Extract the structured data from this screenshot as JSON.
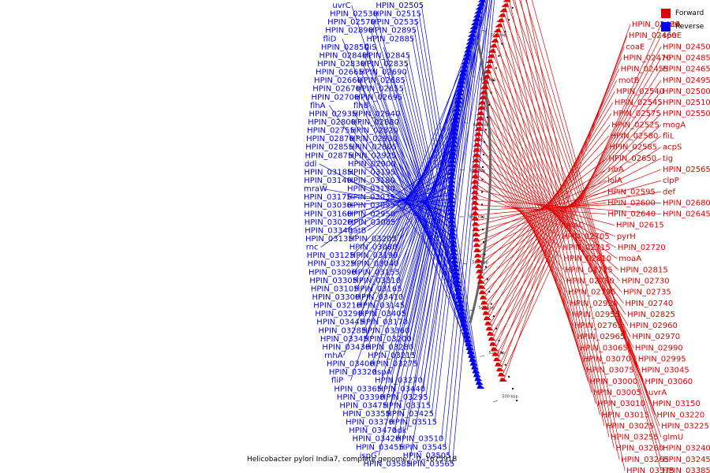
{
  "caption": "Helicobacter pylori India7, complete genome. - 0..1675918",
  "colors": {
    "forward": "#e00000",
    "reverse": "#0000ee",
    "backbone": "#666666"
  },
  "legend": [
    {
      "label": "Forward",
      "color": "#e00000"
    },
    {
      "label": "Reverse",
      "color": "#0000ee"
    }
  ],
  "ticks": [
    "500 kbp",
    "520 kbp",
    "540 kbp",
    "560 kbp",
    "580 kbp",
    "600 kbp",
    "620 kbp",
    "640 kbp",
    "660 kbp",
    "680 kbp",
    "700 kbp"
  ],
  "reverse_labels": [
    "HPIN_02505",
    "uvrC",
    "HPIN_02515",
    "HPIN_02530",
    "HPIN_02535",
    "HPIN_02570",
    "HPIN_02895",
    "HPIN_02890",
    "HPIN_02885",
    "fliD",
    "fliS",
    "HPIN_02850",
    "HPIN_02845",
    "HPIN_02840",
    "HPIN_02835",
    "HPIN_02830",
    "HPIN_02690",
    "HPIN_02665",
    "HPIN_02685",
    "HPIN_02660",
    "HPIN_02655",
    "HPIN_02670",
    "HPIN_02695",
    "HPIN_02700",
    "flhB",
    "flhA",
    "HPIN_02940",
    "HPIN_02935",
    "HPIN_02880",
    "HPIN_02800",
    "HPIN_02820",
    "HPIN_02755",
    "HPIN_02930",
    "HPIN_02870",
    "HPIN_02805",
    "HPIN_02855",
    "HPIN_02925",
    "HPIN_02875",
    "HPIN_02900",
    "ddl",
    "HPIN_03195",
    "HPIN_03185",
    "HPIN_03180",
    "HPIN_03140",
    "HPIN_03130",
    "mraW",
    "HPIN_03035",
    "HPIN_03175",
    "HPIN_03095",
    "HPIN_03030",
    "HPIN_02950",
    "HPIN_03160",
    "HPIN_03085",
    "HPIN_03020",
    "gatB",
    "HPIN_03340",
    "HPIN_03205",
    "HPIN_03135",
    "HPIN_03080",
    "rnc",
    "HPIN_03190",
    "HPIN_03125",
    "HPIN_03040",
    "HPIN_03325",
    "HPIN_03155",
    "HPIN_03090",
    "HPIN_03310",
    "HPIN_03305",
    "HPIN_03165",
    "HPIN_03105",
    "HPIN_03410",
    "HPIN_03300",
    "HPIN_03145",
    "HPIN_03210",
    "HPIN_03405",
    "HPIN_03290",
    "HPIN_03170",
    "HPIN_03445",
    "HPIN_03360",
    "HPIN_03285",
    "HPIN_03200",
    "HPIN_03345",
    "HPIN_03280",
    "HPIN_03430",
    "HPIN_03215",
    "rnhA",
    "HPIN_03275",
    "HPIN_03400",
    "aspA",
    "HPIN_03320",
    "HPIN_03270",
    "fliP",
    "HPIN_03440",
    "HPIN_03365",
    "HPIN_03295",
    "HPIN_03390",
    "HPIN_03315",
    "HPIN_03475",
    "HPIN_03425",
    "HPIN_03355",
    "HPIN_03515",
    "HPIN_03370",
    "adk",
    "HPIN_03470",
    "HPIN_03510",
    "HPIN_03420",
    "HPIN_03545",
    "HPIN_03455",
    "HPIN_03505",
    "ispG",
    "HPIN_03565",
    "HPIN_03585"
  ],
  "forward_labels": [
    "HPIN_02430",
    "gatA",
    "HPIN_02460",
    "speE",
    "coaE",
    "HPIN_02450",
    "HPIN_02470",
    "HPIN_02485",
    "HPIN_02455",
    "HPIN_02465",
    "motB",
    "HPIN_02495",
    "HPIN_02540",
    "HPIN_02500",
    "HPIN_02545",
    "HPIN_02510",
    "HPIN_02575",
    "HPIN_02550",
    "HPIN_02525",
    "mogA",
    "HPIN_02580",
    "fliL",
    "HPIN_02585",
    "acpS",
    "HPIN_02650",
    "tig",
    "ribA",
    "HPIN_02565",
    "lolA",
    "clpP",
    "HPIN_02595",
    "def",
    "HPIN_02600",
    "HPIN_02680",
    "HPIN_02640",
    "HPIN_02645",
    "moaC",
    "HPIN_02615",
    "HPIN_02705",
    "pyrH",
    "HPIN_02715",
    "HPIN_02720",
    "HPIN_02810",
    "moaA",
    "HPIN_02725",
    "HPIN_02815",
    "HPIN_02780",
    "HPIN_02730",
    "HPIN_02795",
    "HPIN_02735",
    "HPIN_02920",
    "HPIN_02740",
    "HPIN_02955",
    "HPIN_02825",
    "HPIN_02765",
    "HPIN_02960",
    "HPIN_02965",
    "HPIN_02970",
    "HPIN_03065",
    "HPIN_02990",
    "HPIN_03070",
    "HPIN_02995",
    "HPIN_03075",
    "HPIN_03045",
    "HPIN_03000",
    "HPIN_03060",
    "HPIN_03005",
    "uvrA",
    "HPIN_03010",
    "HPIN_03150",
    "HPIN_03015",
    "HPIN_03220",
    "HPIN_03025",
    "HPIN_03225",
    "HPIN_03255",
    "glmU",
    "HPIN_03260",
    "HPIN_03240",
    "HPIN_03265",
    "HPIN_03245",
    "HPIN_03375",
    "HPIN_03385"
  ]
}
